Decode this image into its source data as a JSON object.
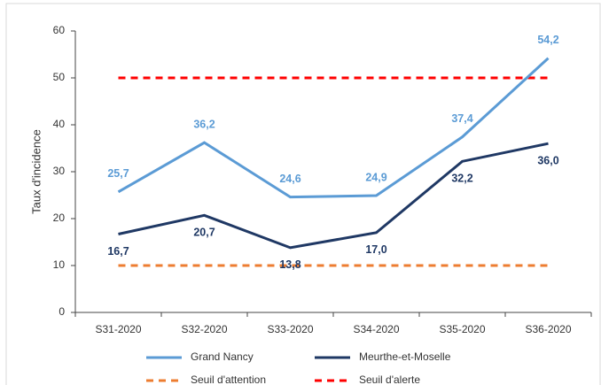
{
  "chart_data": {
    "type": "line",
    "y_label": "Taux d'incidence",
    "categories": [
      "S31-2020",
      "S32-2020",
      "S33-2020",
      "S34-2020",
      "S35-2020",
      "S36-2020"
    ],
    "series": [
      {
        "name": "Grand Nancy",
        "color": "#5b9bd5",
        "values": [
          25.7,
          36.2,
          24.6,
          24.9,
          37.4,
          54.2
        ],
        "value_labels": [
          "25,7",
          "36,2",
          "24,6",
          "24,9",
          "37,4",
          "54,2"
        ],
        "label_side": "above"
      },
      {
        "name": "Meurthe-et-Moselle",
        "color": "#1f3864",
        "values": [
          16.7,
          20.7,
          13.8,
          17.0,
          32.2,
          36.0
        ],
        "value_labels": [
          "16,7",
          "20,7",
          "13,8",
          "17,0",
          "32,2",
          "36,0"
        ],
        "label_side": "below"
      },
      {
        "name": "Seuil d'attention",
        "color": "#ed7d31",
        "values": [
          10,
          10,
          10,
          10,
          10,
          10
        ],
        "dashed": true
      },
      {
        "name": "Seuil d'alerte",
        "color": "#ff0000",
        "values": [
          50,
          50,
          50,
          50,
          50,
          50
        ],
        "dashed": true
      }
    ],
    "ylim": [
      0,
      60
    ],
    "yticks": [
      0,
      10,
      20,
      30,
      40,
      50,
      60
    ],
    "grid": false,
    "legend": "bottom"
  }
}
